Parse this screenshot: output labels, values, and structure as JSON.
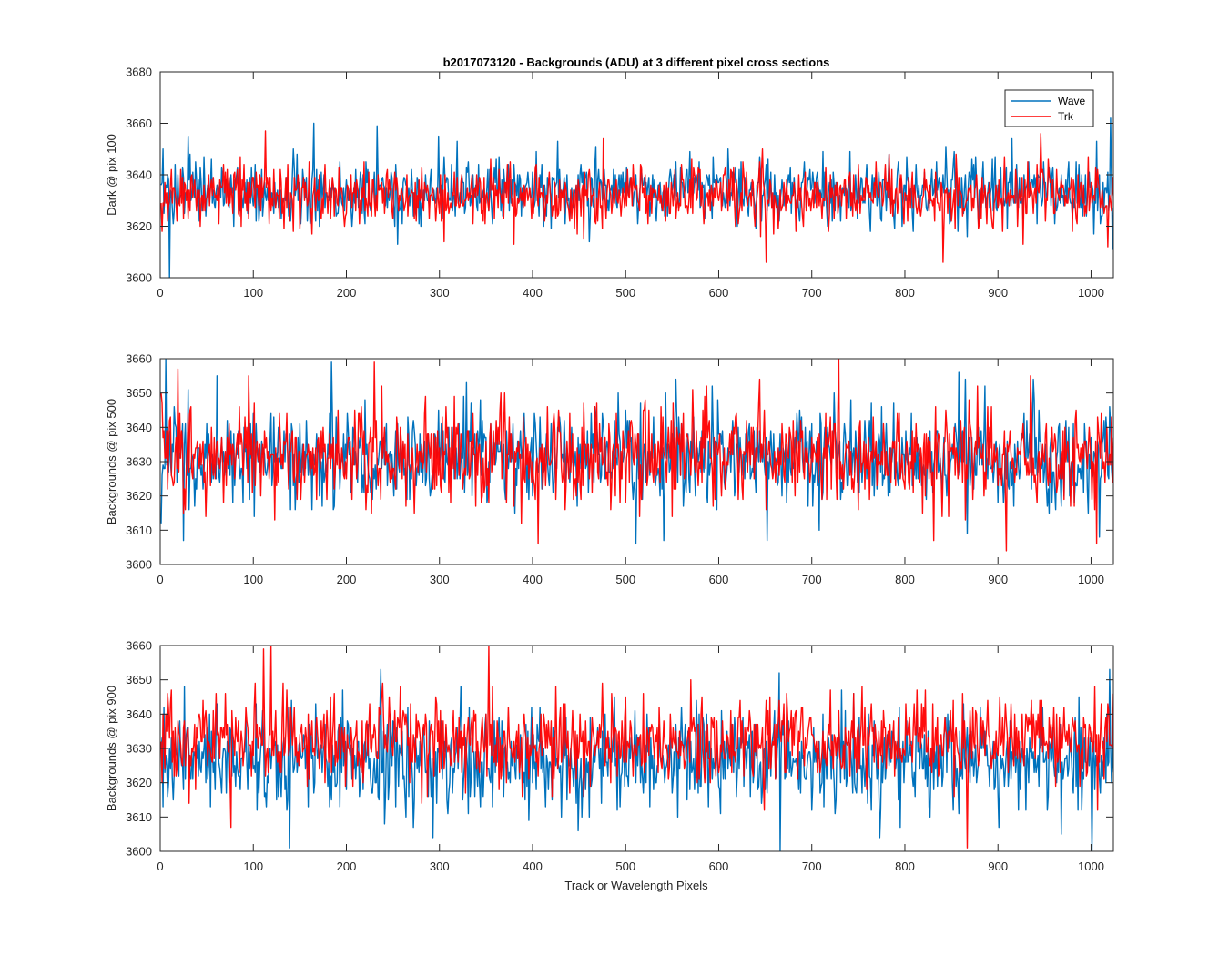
{
  "figure": {
    "title": "b2017073120 - Backgrounds (ADU) at 3 different pixel cross sections",
    "xlabel": "Track or Wavelength Pixels"
  },
  "colors": {
    "Wave": "#0072BD",
    "Trk": "#FF0000",
    "axes": "#262626"
  },
  "legend": {
    "entries": [
      "Wave",
      "Trk"
    ],
    "location": "top-right of first panel"
  },
  "chart_data": [
    {
      "type": "line",
      "title": "b2017073120 - Backgrounds (ADU) at 3 different pixel cross sections",
      "xlabel": "",
      "ylabel": "Dark @ pix 100",
      "xlim": [
        0,
        1024
      ],
      "ylim": [
        3600,
        3680
      ],
      "xticks": [
        0,
        100,
        200,
        300,
        400,
        500,
        600,
        700,
        800,
        900,
        1000
      ],
      "yticks": [
        3600,
        3620,
        3640,
        3660,
        3680
      ],
      "grid": false,
      "legend": "top-right",
      "n_points": 1024,
      "series": [
        {
          "name": "Wave",
          "color": "#0072BD",
          "mean": 3634,
          "std": 7,
          "spikes": [
            [
              9,
              3600
            ],
            [
              164,
              3660
            ],
            [
              232,
              3659
            ],
            [
              1020,
              3662
            ],
            [
              1022,
              3611
            ]
          ]
        },
        {
          "name": "Trk",
          "color": "#FF0000",
          "mean": 3632,
          "std": 7,
          "spikes": [
            [
              112,
              3657
            ],
            [
              650,
              3606
            ],
            [
              840,
              3606
            ],
            [
              945,
              3656
            ]
          ]
        }
      ]
    },
    {
      "type": "line",
      "title": "",
      "xlabel": "",
      "ylabel": "Backgrounds @ pix 500",
      "xlim": [
        0,
        1024
      ],
      "ylim": [
        3600,
        3660
      ],
      "xticks": [
        0,
        100,
        200,
        300,
        400,
        500,
        600,
        700,
        800,
        900,
        1000
      ],
      "yticks": [
        3600,
        3610,
        3620,
        3630,
        3640,
        3650,
        3660
      ],
      "grid": false,
      "n_points": 1024,
      "series": [
        {
          "name": "Wave",
          "color": "#0072BD",
          "mean": 3631,
          "std": 8,
          "spikes": [
            [
              24,
              3607
            ],
            [
              183,
              3659
            ],
            [
              540,
              3607
            ],
            [
              651,
              3607
            ],
            [
              1008,
              3608
            ]
          ]
        },
        {
          "name": "Trk",
          "color": "#FF0000",
          "mean": 3632,
          "std": 8,
          "spikes": [
            [
              18,
              3657
            ],
            [
              229,
              3659
            ],
            [
              728,
              3660
            ],
            [
              830,
              3607
            ],
            [
              1005,
              3606
            ]
          ]
        }
      ]
    },
    {
      "type": "line",
      "title": "",
      "xlabel": "Track or Wavelength Pixels",
      "ylabel": "Backgrounds @ pix 900",
      "xlim": [
        0,
        1024
      ],
      "ylim": [
        3600,
        3660
      ],
      "xticks": [
        0,
        100,
        200,
        300,
        400,
        500,
        600,
        700,
        800,
        900,
        1000
      ],
      "yticks": [
        3600,
        3610,
        3620,
        3630,
        3640,
        3650,
        3660
      ],
      "grid": false,
      "n_points": 1024,
      "series": [
        {
          "name": "Wave",
          "color": "#0072BD",
          "mean": 3627,
          "std": 8,
          "spikes": [
            [
              138,
              3601
            ],
            [
              665,
              3600
            ],
            [
              772,
              3604
            ],
            [
              1000,
              3600
            ]
          ]
        },
        {
          "name": "Trk",
          "color": "#FF0000",
          "mean": 3632,
          "std": 7,
          "spikes": [
            [
              110,
              3659
            ],
            [
              118,
              3660
            ],
            [
              352,
              3660
            ],
            [
              75,
              3607
            ]
          ]
        }
      ]
    }
  ]
}
